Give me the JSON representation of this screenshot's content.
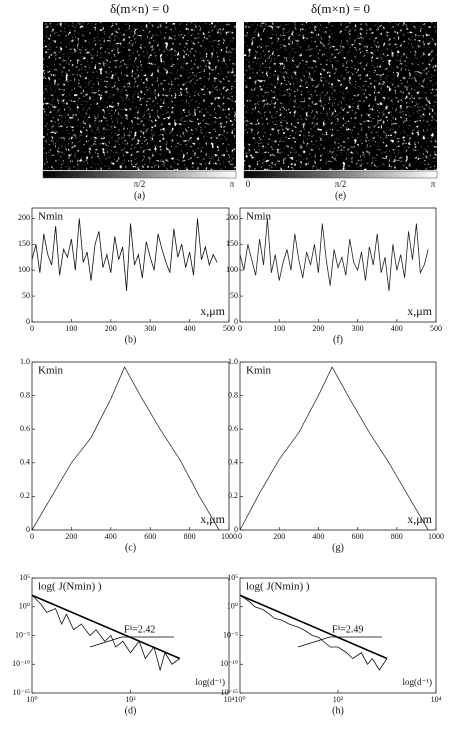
{
  "chart_data": [
    {
      "type": "image",
      "title": "δ(m×n) = 0",
      "colorbar_labels": [
        "π/2",
        "π"
      ],
      "caption": "(a)"
    },
    {
      "type": "image",
      "title": "δ(m×n) = 0",
      "colorbar_labels": [
        "0",
        "π/2",
        "π"
      ],
      "caption": "(e)"
    },
    {
      "type": "line",
      "ylabel": "Nmin",
      "xlabel": "x,μm",
      "caption": "(b)",
      "color": "#111111",
      "x": [
        0,
        10,
        20,
        30,
        40,
        50,
        60,
        70,
        80,
        90,
        100,
        110,
        120,
        130,
        140,
        150,
        160,
        170,
        180,
        190,
        200,
        210,
        220,
        230,
        240,
        250,
        260,
        270,
        280,
        290,
        300,
        310,
        320,
        330,
        340,
        350,
        360,
        370,
        380,
        390,
        400,
        410,
        420,
        430,
        440,
        450,
        460,
        470
      ],
      "values": [
        120,
        150,
        95,
        170,
        130,
        110,
        185,
        90,
        140,
        125,
        160,
        100,
        200,
        115,
        135,
        80,
        150,
        175,
        105,
        130,
        95,
        165,
        120,
        145,
        60,
        190,
        110,
        130,
        85,
        155,
        125,
        100,
        170,
        140,
        115,
        95,
        180,
        125,
        150,
        105,
        135,
        90,
        200,
        120,
        145,
        110,
        130,
        115
      ],
      "xlim": [
        0,
        500
      ],
      "ylim": [
        0,
        220
      ],
      "xticks": [
        0,
        100,
        200,
        300,
        400,
        500
      ],
      "yticks": [
        0,
        50,
        100,
        150,
        200
      ]
    },
    {
      "type": "line",
      "ylabel": "Nmin",
      "xlabel": "x,μm",
      "caption": "(f)",
      "color": "#222222",
      "x": [
        0,
        10,
        20,
        30,
        40,
        50,
        60,
        70,
        80,
        90,
        100,
        110,
        120,
        130,
        140,
        150,
        160,
        170,
        180,
        190,
        200,
        210,
        220,
        230,
        240,
        250,
        260,
        270,
        280,
        290,
        300,
        310,
        320,
        330,
        340,
        350,
        360,
        370,
        380,
        390,
        400,
        410,
        420,
        430,
        440,
        450,
        460,
        470,
        480
      ],
      "values": [
        130,
        100,
        150,
        120,
        90,
        160,
        110,
        200,
        95,
        130,
        80,
        115,
        140,
        100,
        170,
        120,
        85,
        135,
        110,
        150,
        95,
        190,
        120,
        70,
        140,
        105,
        125,
        90,
        160,
        115,
        100,
        135,
        80,
        145,
        110,
        170,
        95,
        125,
        60,
        150,
        100,
        130,
        85,
        175,
        120,
        190,
        95,
        110,
        140
      ],
      "xlim": [
        0,
        500
      ],
      "ylim": [
        0,
        220
      ],
      "xticks": [
        0,
        100,
        200,
        300,
        400,
        500
      ],
      "yticks": [
        0,
        50,
        100,
        150,
        200
      ]
    },
    {
      "type": "line",
      "ylabel": "Kmin",
      "xlabel": "x,μm",
      "caption": "(c)",
      "color": "#333333",
      "x": [
        0,
        100,
        200,
        300,
        400,
        470,
        550,
        650,
        750,
        850,
        950
      ],
      "values": [
        0,
        0.2,
        0.4,
        0.55,
        0.78,
        0.97,
        0.8,
        0.6,
        0.42,
        0.2,
        0
      ],
      "xlim": [
        0,
        1000
      ],
      "ylim": [
        0,
        1
      ],
      "xticks": [
        0,
        200,
        400,
        600,
        800,
        1000
      ],
      "yticks": [
        0,
        0.2,
        0.4,
        0.6,
        0.8,
        {
          "value": 1,
          "label": "1.0"
        }
      ]
    },
    {
      "type": "line",
      "ylabel": "Kmin",
      "xlabel": "x,μm",
      "caption": "(g)",
      "color": "#333333",
      "x": [
        0,
        100,
        200,
        300,
        400,
        470,
        560,
        660,
        760,
        860,
        960
      ],
      "values": [
        0,
        0.22,
        0.42,
        0.58,
        0.8,
        0.97,
        0.78,
        0.58,
        0.4,
        0.2,
        0
      ],
      "xlim": [
        0,
        1000
      ],
      "ylim": [
        0,
        1
      ],
      "xticks": [
        0,
        200,
        400,
        600,
        800,
        1000
      ],
      "yticks": [
        0,
        0.2,
        0.4,
        0.6,
        0.8,
        {
          "value": 1,
          "label": "1.0"
        }
      ]
    },
    {
      "type": "line",
      "ylabel": "log( J(Nmin) )",
      "xlabel": "log(d⁻¹)",
      "caption": "(d)",
      "color": "#111111",
      "annotation": "Fᵟ=2.42",
      "xscale": "log",
      "yscale": "log",
      "x": [
        1,
        1.5,
        2,
        3,
        4,
        5,
        7,
        10,
        15,
        20,
        30,
        40,
        50,
        70,
        100,
        150,
        200,
        300,
        400,
        500,
        700,
        1000
      ],
      "values": [
        100,
        3,
        0.1,
        0.5,
        0.001,
        0.05,
        0.0001,
        0.001,
        1e-05,
        0.0001,
        1e-06,
        1e-05,
        1e-07,
        1e-06,
        1e-08,
        1e-06,
        1e-09,
        1e-07,
        1e-11,
        1e-08,
        1e-10,
        1e-09
      ],
      "fit": {
        "x": [
          1,
          1000
        ],
        "values": [
          100,
          1e-09
        ]
      },
      "xlim": [
        1,
        10000
      ],
      "ylim": [
        1e-15,
        100000
      ],
      "xticks": [
        {
          "value": 1,
          "label": "10⁰"
        },
        {
          "value": 100,
          "label": "10²"
        },
        {
          "value": 10000,
          "label": "10⁴"
        }
      ],
      "yticks": [
        {
          "value": 1e-15,
          "label": "10⁻¹⁵"
        },
        {
          "value": 1e-10,
          "label": "10⁻¹⁰"
        },
        {
          "value": 1e-05,
          "label": "10⁻⁵"
        },
        {
          "value": 1,
          "label": "10⁰"
        },
        {
          "value": 100000,
          "label": "10⁵"
        }
      ]
    },
    {
      "type": "line",
      "ylabel": "log( J(Nmin) )",
      "xlabel": "log(d⁻¹)",
      "caption": "(h)",
      "color": "#111111",
      "annotation": "Fᵟ=2.49",
      "xscale": "log",
      "yscale": "log",
      "x": [
        1,
        1.5,
        2,
        3,
        4,
        5,
        7,
        10,
        15,
        20,
        30,
        40,
        50,
        70,
        100,
        150,
        200,
        300,
        400,
        500,
        700,
        1000
      ],
      "values": [
        100,
        10,
        1,
        0.3,
        0.05,
        0.01,
        0.005,
        0.001,
        0.0003,
        0.0001,
        1e-05,
        5e-06,
        1e-06,
        1e-07,
        1e-07,
        1e-08,
        1e-09,
        1e-08,
        1e-10,
        1e-09,
        1e-11,
        1e-09
      ],
      "fit": {
        "x": [
          1,
          1000
        ],
        "values": [
          100,
          1e-09
        ]
      },
      "xlim": [
        1,
        10000
      ],
      "ylim": [
        1e-15,
        100000
      ],
      "xticks": [
        {
          "value": 1,
          "label": "10⁰"
        },
        {
          "value": 100,
          "label": "10²"
        },
        {
          "value": 10000,
          "label": "10⁴"
        }
      ],
      "yticks": [
        {
          "value": 1e-15,
          "label": "10⁻¹⁵"
        },
        {
          "value": 1e-10,
          "label": "10⁻¹⁰"
        },
        {
          "value": 1e-05,
          "label": "10⁻⁵"
        },
        {
          "value": 1,
          "label": "10⁰"
        },
        {
          "value": 100000,
          "label": "10⁵"
        }
      ]
    }
  ]
}
